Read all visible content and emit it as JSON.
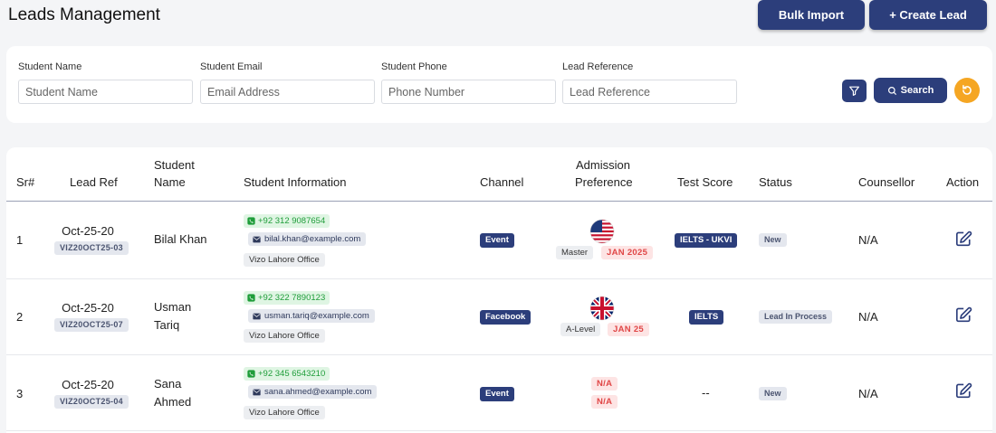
{
  "header": {
    "title": "Leads Management",
    "bulk_import_label": "Bulk Import",
    "create_lead_label": "+ Create Lead"
  },
  "filters": {
    "student_name": {
      "label": "Student Name",
      "placeholder": "Student Name"
    },
    "student_email": {
      "label": "Student Email",
      "placeholder": "Email Address"
    },
    "student_phone": {
      "label": "Student Phone",
      "placeholder": "Phone Number"
    },
    "lead_reference": {
      "label": "Lead Reference",
      "placeholder": "Lead Reference"
    },
    "search_label": "Search"
  },
  "table": {
    "columns": {
      "sr": "Sr#",
      "lead_ref": "Lead Ref",
      "student_name_1": "Student",
      "student_name_2": "Name",
      "student_info": "Student Information",
      "channel": "Channel",
      "admission_1": "Admission",
      "admission_2": "Preference",
      "test_score": "Test Score",
      "status": "Status",
      "counsellor": "Counsellor",
      "action": "Action"
    },
    "rows": [
      {
        "sr": "1",
        "ref_date": "Oct-25-20",
        "ref_code": "VIZ20OCT25-03",
        "name_1": "Bilal  Khan",
        "name_2": "",
        "phone": "+92 312 9087654",
        "email": "bilal.khan@example.com",
        "office": "Vizo Lahore Office",
        "channel": "Event",
        "flag": "us-flag-icon",
        "level": "Master",
        "intake": "JAN 2025",
        "test_score": "IELTS - UKVI",
        "status": "New",
        "counsellor": "N/A"
      },
      {
        "sr": "2",
        "ref_date": "Oct-25-20",
        "ref_code": "VIZ20OCT25-07",
        "name_1": "Usman",
        "name_2": "Tariq",
        "phone": "+92 322 7890123",
        "email": "usman.tariq@example.com",
        "office": "Vizo Lahore Office",
        "channel": "Facebook",
        "flag": "uk-flag-icon",
        "level": "A-Level",
        "intake": "JAN 25",
        "test_score": "IELTS",
        "status": "Lead In Process",
        "counsellor": "N/A"
      },
      {
        "sr": "3",
        "ref_date": "Oct-25-20",
        "ref_code": "VIZ20OCT25-04",
        "name_1": "Sana",
        "name_2": "Ahmed",
        "phone": "+92 345 6543210",
        "email": "sana.ahmed@example.com",
        "office": "Vizo Lahore Office",
        "channel": "Event",
        "level_na": "N/A",
        "intake_na": "N/A",
        "test_score": "--",
        "status": "New",
        "counsellor": "N/A"
      }
    ]
  },
  "colors": {
    "primary": "#2c3e7b",
    "accent": "#f5a623",
    "phone_green": "#1f9d3a",
    "intake_red": "#e04646"
  }
}
